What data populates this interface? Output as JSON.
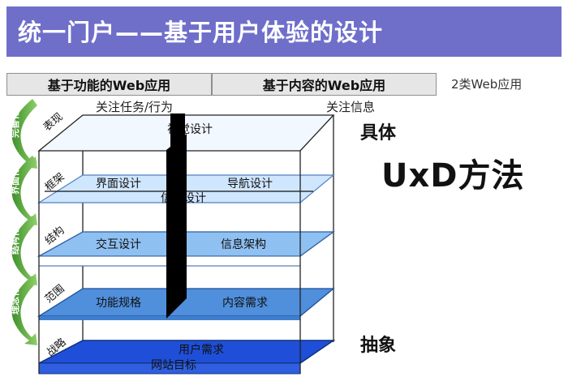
{
  "title": "统一门户——基于用户体验的设计",
  "header": {
    "left": "基于功能的Web应用",
    "right": "基于内容的Web应用",
    "note": "2类Web应用"
  },
  "side_labels": {
    "left": "关注任务/行为",
    "right": "关注信息"
  },
  "scale": {
    "top": "具体",
    "bottom": "抽象"
  },
  "method": "UxD方法",
  "layers": {
    "surface": {
      "name": "表现",
      "content": "视觉设计"
    },
    "skeleton": {
      "name": "框架",
      "left": "界面设计",
      "right": "导航设计",
      "center": "信息设计"
    },
    "structure": {
      "name": "结构",
      "left": "交互设计",
      "right": "信息架构"
    },
    "scope": {
      "name": "范围",
      "left": "功能规格",
      "right": "内容需求"
    },
    "strategy": {
      "name": "战略",
      "top": "用户需求",
      "bottom": "网站目标"
    }
  },
  "stages": [
    "完善化",
    "界面化",
    "结构化",
    "理念化"
  ],
  "colors": {
    "title_bg": "#6f6fca",
    "arrow": "#5fae3a",
    "surface": "#f2f8ff",
    "skeleton": "#cfe6ff",
    "structure": "#8fc0f2",
    "scope": "#4f8fdc",
    "strategy": "#1f4fd8"
  }
}
